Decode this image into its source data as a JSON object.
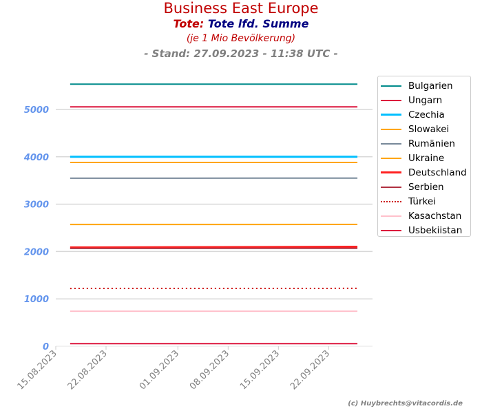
{
  "title": "Business East Europe",
  "subtitle_a": "Tote:",
  "subtitle_b": "Tote lfd. Summe",
  "subtitle2": "(je 1 Mio Bevölkerung)",
  "stand": "- Stand: 27.09.2023 - 11:38 UTC -",
  "credit": "(c) Huybrechts@vitacordis.de",
  "chart_data": {
    "type": "line",
    "xlim": [
      "15.08.2023",
      "28.09.2023"
    ],
    "ylim": [
      0,
      5700
    ],
    "grid": true,
    "legend_placement": "outside-right",
    "x_ticks": [
      "15.08.2023",
      "22.08.2023",
      "01.09.2023",
      "08.09.2023",
      "15.09.2023",
      "22.09.2023"
    ],
    "y_ticks": [
      0,
      1000,
      2000,
      3000,
      4000,
      5000
    ],
    "x": [
      "17.08.2023",
      "26.09.2023"
    ],
    "series": [
      {
        "name": "Bulgarien",
        "color": "#008b8b",
        "width": 2,
        "style": "solid",
        "values": [
          5535,
          5535
        ]
      },
      {
        "name": "Ungarn",
        "color": "#dc143c",
        "width": 2,
        "style": "solid",
        "values": [
          5055,
          5055
        ]
      },
      {
        "name": "Czechia",
        "color": "#00bfff",
        "width": 3,
        "style": "solid",
        "values": [
          4000,
          4000
        ]
      },
      {
        "name": "Slowakei",
        "color": "#ffa500",
        "width": 2,
        "style": "solid",
        "values": [
          3880,
          3880
        ]
      },
      {
        "name": "Rumänien",
        "color": "#778899",
        "width": 2,
        "style": "solid",
        "values": [
          3548,
          3550
        ]
      },
      {
        "name": "Ukraine",
        "color": "#ffa500",
        "width": 2,
        "style": "solid",
        "values": [
          2570,
          2572
        ]
      },
      {
        "name": "Deutschland",
        "color": "#ff2020",
        "width": 3,
        "style": "solid",
        "values": [
          2085,
          2100
        ]
      },
      {
        "name": "Serbien",
        "color": "#b03040",
        "width": 2,
        "style": "solid",
        "values": [
          2065,
          2068
        ]
      },
      {
        "name": "Türkei",
        "color": "#cc0000",
        "width": 2,
        "style": "dotted",
        "values": [
          1220,
          1222
        ]
      },
      {
        "name": "Kasachstan",
        "color": "#ffc0cb",
        "width": 2,
        "style": "solid",
        "values": [
          740,
          740
        ]
      },
      {
        "name": "Usbekiistan",
        "color": "#dc143c",
        "width": 2,
        "style": "solid",
        "values": [
          55,
          55
        ]
      }
    ]
  }
}
